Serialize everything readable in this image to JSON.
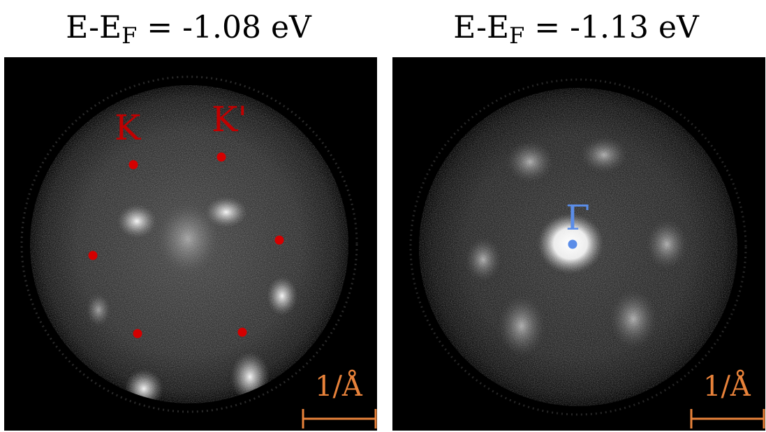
{
  "panels": [
    {
      "title_prefix": "E-E",
      "title_subscript": "F",
      "title_suffix": " = -1.08 eV",
      "labels": [
        {
          "text": "K",
          "color": "#c00000"
        },
        {
          "text": "K'",
          "color": "#c00000"
        }
      ],
      "scale_bar_label": "1/Å",
      "scale_bar_color": "#e8823a"
    },
    {
      "title_prefix": "E-E",
      "title_subscript": "F",
      "title_suffix": " = -1.13 eV",
      "labels": [
        {
          "text": "Γ",
          "color": "#5b8de8"
        }
      ],
      "scale_bar_label": "1/Å",
      "scale_bar_color": "#e8823a"
    }
  ]
}
